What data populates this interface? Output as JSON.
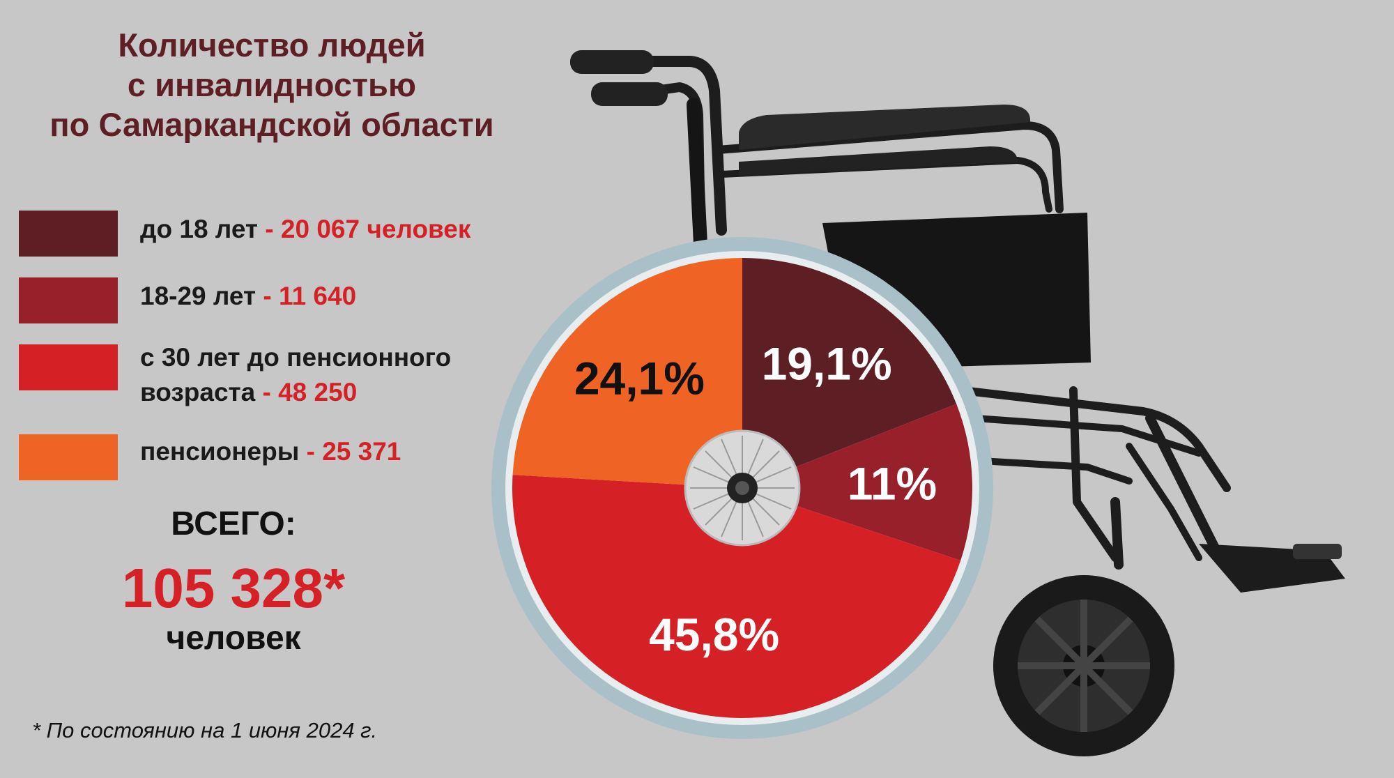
{
  "title": {
    "line1": "Количество людей",
    "line2": "с инвалидностью",
    "line3": "по Самаркандской области"
  },
  "legend": [
    {
      "label": "до 18 лет",
      "sep": " - ",
      "value": "20 067 человек",
      "color": "#5e1f24"
    },
    {
      "label": "18-29 лет",
      "sep": " - ",
      "value": "11 640",
      "color": "#98202a"
    },
    {
      "label": "с 30 лет до пенсионного",
      "label2": "возраста",
      "sep": " - ",
      "value": "48 250",
      "color": "#d52126"
    },
    {
      "label": "пенсионеры",
      "sep": " - ",
      "value": "25 371",
      "color": "#ef6324"
    }
  ],
  "total": {
    "label": "ВСЕГО:",
    "value": "105 328*",
    "unit": "человек"
  },
  "footnote": "* По состоянию на 1 июня 2024 г.",
  "chart_data": {
    "type": "pie",
    "categories": [
      "до 18 лет",
      "18-29 лет",
      "с 30 лет до пенсионного возраста",
      "пенсионеры"
    ],
    "values": [
      20067,
      11640,
      48250,
      25371
    ],
    "percent_labels": [
      "19,1%",
      "11%",
      "45,8%",
      "24,1%"
    ],
    "colors": [
      "#5e1f24",
      "#98202a",
      "#d52126",
      "#ef6324"
    ],
    "label_colors": [
      "#ffffff",
      "#ffffff",
      "#ffffff",
      "#111111"
    ],
    "start": "top",
    "direction": "clockwise"
  },
  "colors": {
    "background": "#c7c7c7",
    "title": "#5e1f24",
    "accent": "#d52126",
    "tire": "#a9c0c9"
  }
}
